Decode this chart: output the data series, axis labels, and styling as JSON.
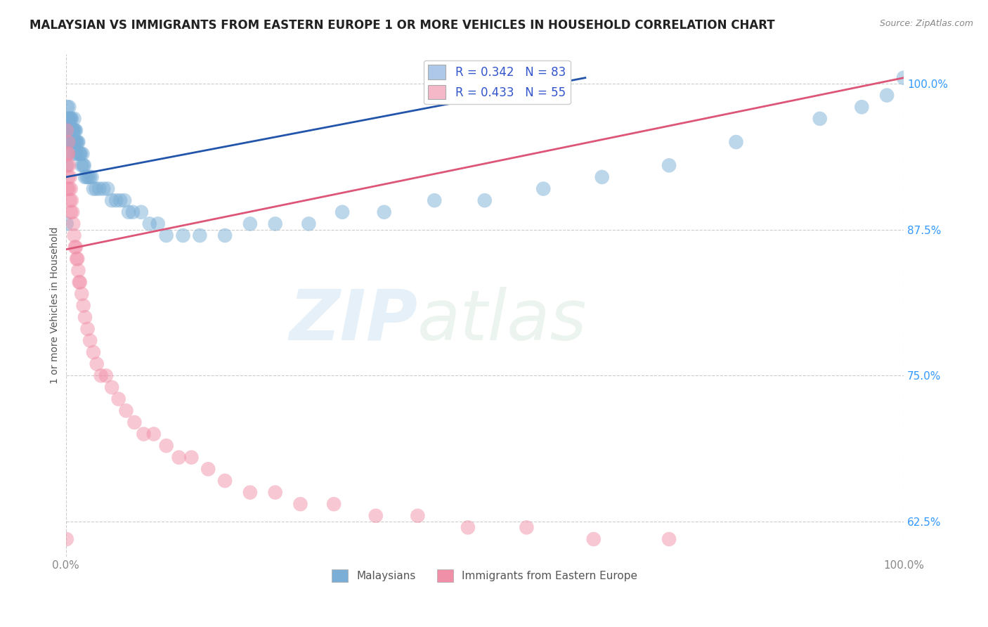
{
  "title": "MALAYSIAN VS IMMIGRANTS FROM EASTERN EUROPE 1 OR MORE VEHICLES IN HOUSEHOLD CORRELATION CHART",
  "source": "Source: ZipAtlas.com",
  "ylabel": "1 or more Vehicles in Household",
  "xlim": [
    0.0,
    1.0
  ],
  "ylim": [
    0.595,
    1.025
  ],
  "yticks": [
    0.625,
    0.75,
    0.875,
    1.0
  ],
  "ytick_labels": [
    "62.5%",
    "75.0%",
    "87.5%",
    "100.0%"
  ],
  "xticks": [
    0.0,
    1.0
  ],
  "xtick_labels": [
    "0.0%",
    "100.0%"
  ],
  "legend_entries": [
    {
      "label": "R = 0.342   N = 83",
      "color": "#adc8e8"
    },
    {
      "label": "R = 0.433   N = 55",
      "color": "#f5b8c8"
    }
  ],
  "legend_labels_bottom": [
    "Malaysians",
    "Immigrants from Eastern Europe"
  ],
  "blue_color": "#7aaed6",
  "pink_color": "#f090a8",
  "blue_line_color": "#2255aa",
  "pink_line_color": "#dd5577",
  "watermark_zip": "ZIP",
  "watermark_atlas": "atlas",
  "background_color": "#ffffff",
  "grid_color": "#cccccc",
  "blue_line": {
    "x0": 0.0,
    "x1": 0.62,
    "y0": 0.92,
    "y1": 1.005
  },
  "pink_line": {
    "x0": 0.0,
    "x1": 1.0,
    "y0": 0.858,
    "y1": 1.005
  },
  "blue_scatter_x": [
    0.001,
    0.001,
    0.001,
    0.001,
    0.002,
    0.002,
    0.002,
    0.002,
    0.003,
    0.003,
    0.003,
    0.004,
    0.004,
    0.004,
    0.005,
    0.005,
    0.005,
    0.006,
    0.006,
    0.006,
    0.007,
    0.007,
    0.008,
    0.008,
    0.009,
    0.009,
    0.01,
    0.01,
    0.01,
    0.011,
    0.011,
    0.012,
    0.012,
    0.013,
    0.013,
    0.014,
    0.015,
    0.016,
    0.017,
    0.018,
    0.019,
    0.02,
    0.021,
    0.022,
    0.023,
    0.025,
    0.027,
    0.029,
    0.031,
    0.033,
    0.036,
    0.04,
    0.045,
    0.05,
    0.055,
    0.06,
    0.065,
    0.07,
    0.075,
    0.08,
    0.09,
    0.1,
    0.11,
    0.12,
    0.14,
    0.16,
    0.19,
    0.22,
    0.25,
    0.29,
    0.33,
    0.38,
    0.44,
    0.5,
    0.57,
    0.64,
    0.72,
    0.8,
    0.9,
    0.95,
    0.98,
    1.0,
    0.001
  ],
  "blue_scatter_y": [
    0.96,
    0.95,
    0.94,
    0.93,
    0.98,
    0.97,
    0.96,
    0.95,
    0.97,
    0.96,
    0.95,
    0.98,
    0.97,
    0.96,
    0.97,
    0.96,
    0.95,
    0.97,
    0.96,
    0.95,
    0.97,
    0.96,
    0.96,
    0.95,
    0.96,
    0.95,
    0.97,
    0.96,
    0.94,
    0.96,
    0.95,
    0.96,
    0.95,
    0.95,
    0.94,
    0.95,
    0.95,
    0.94,
    0.94,
    0.94,
    0.93,
    0.94,
    0.93,
    0.93,
    0.92,
    0.92,
    0.92,
    0.92,
    0.92,
    0.91,
    0.91,
    0.91,
    0.91,
    0.91,
    0.9,
    0.9,
    0.9,
    0.9,
    0.89,
    0.89,
    0.89,
    0.88,
    0.88,
    0.87,
    0.87,
    0.87,
    0.87,
    0.88,
    0.88,
    0.88,
    0.89,
    0.89,
    0.9,
    0.9,
    0.91,
    0.92,
    0.93,
    0.95,
    0.97,
    0.98,
    0.99,
    1.005,
    0.88
  ],
  "pink_scatter_x": [
    0.001,
    0.001,
    0.002,
    0.002,
    0.002,
    0.003,
    0.003,
    0.003,
    0.004,
    0.004,
    0.005,
    0.005,
    0.006,
    0.006,
    0.007,
    0.008,
    0.009,
    0.01,
    0.011,
    0.012,
    0.013,
    0.014,
    0.015,
    0.016,
    0.017,
    0.019,
    0.021,
    0.023,
    0.026,
    0.029,
    0.033,
    0.037,
    0.042,
    0.048,
    0.055,
    0.063,
    0.072,
    0.082,
    0.093,
    0.105,
    0.12,
    0.135,
    0.15,
    0.17,
    0.19,
    0.22,
    0.25,
    0.28,
    0.32,
    0.37,
    0.42,
    0.48,
    0.55,
    0.63,
    0.72
  ],
  "pink_scatter_y": [
    0.96,
    0.61,
    0.94,
    0.93,
    0.91,
    0.95,
    0.94,
    0.92,
    0.93,
    0.91,
    0.92,
    0.9,
    0.91,
    0.89,
    0.9,
    0.89,
    0.88,
    0.87,
    0.86,
    0.86,
    0.85,
    0.85,
    0.84,
    0.83,
    0.83,
    0.82,
    0.81,
    0.8,
    0.79,
    0.78,
    0.77,
    0.76,
    0.75,
    0.75,
    0.74,
    0.73,
    0.72,
    0.71,
    0.7,
    0.7,
    0.69,
    0.68,
    0.68,
    0.67,
    0.66,
    0.65,
    0.65,
    0.64,
    0.64,
    0.63,
    0.63,
    0.62,
    0.62,
    0.61,
    0.61
  ]
}
